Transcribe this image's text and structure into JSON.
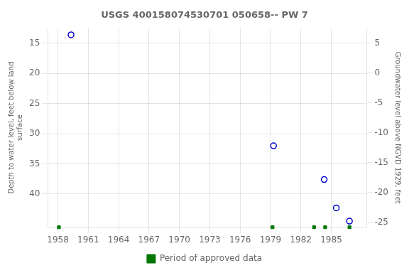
{
  "chart_data": {
    "type": "scatter",
    "title": "USGS 400158074530701 050658-- PW 7",
    "ylabel": "Depth to water level, feet below land\nsurface",
    "y2label": "Groundwater level above NGVD 1929, feet",
    "xlim": [
      1957.0,
      1988.5
    ],
    "xticks": [
      1958,
      1961,
      1964,
      1967,
      1970,
      1973,
      1976,
      1979,
      1982,
      1985
    ],
    "ylim": [
      45.5,
      12.5
    ],
    "yticks": [
      15,
      20,
      25,
      30,
      35,
      40
    ],
    "y2lim": [
      -25.833,
      7.5
    ],
    "y2ticks": [
      5,
      0,
      -5,
      -10,
      -15,
      -20,
      -25
    ],
    "grid": true,
    "legend": "bottom",
    "series": [
      {
        "x": [
          1959.3,
          1979.3,
          1984.3,
          1985.5,
          1986.8
        ],
        "values": [
          13.6,
          32.0,
          37.6,
          42.3,
          44.5
        ],
        "color": "#0000cc",
        "marker": "circle"
      },
      {
        "name": "Period of approved data",
        "x": [
          1958.1,
          1979.2,
          1983.3,
          1984.4,
          1986.8
        ],
        "color": "#007700",
        "marker": "square"
      }
    ]
  }
}
